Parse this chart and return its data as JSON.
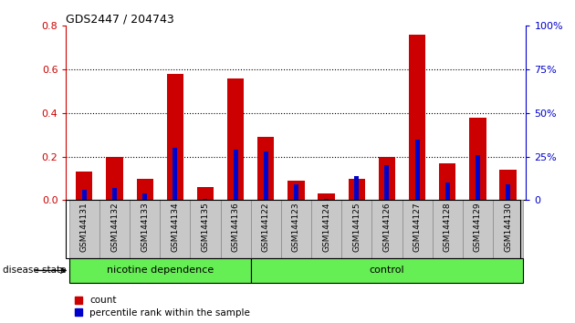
{
  "title": "GDS2447 / 204743",
  "samples": [
    "GSM144131",
    "GSM144132",
    "GSM144133",
    "GSM144134",
    "GSM144135",
    "GSM144136",
    "GSM144122",
    "GSM144123",
    "GSM144124",
    "GSM144125",
    "GSM144126",
    "GSM144127",
    "GSM144128",
    "GSM144129",
    "GSM144130"
  ],
  "count_values": [
    0.13,
    0.2,
    0.1,
    0.58,
    0.06,
    0.56,
    0.29,
    0.09,
    0.03,
    0.1,
    0.2,
    0.76,
    0.17,
    0.38,
    0.14
  ],
  "percentile_values": [
    0.06,
    0.07,
    0.04,
    0.3,
    0.01,
    0.29,
    0.28,
    0.09,
    0.01,
    0.14,
    0.2,
    0.35,
    0.1,
    0.26,
    0.09
  ],
  "nicotine_indices": [
    0,
    1,
    2,
    3,
    4,
    5
  ],
  "control_indices": [
    6,
    7,
    8,
    9,
    10,
    11,
    12,
    13,
    14
  ],
  "group_labels": [
    "nicotine dependence",
    "control"
  ],
  "count_color": "#cc0000",
  "percentile_color": "#0000cc",
  "bar_width": 0.55,
  "pct_bar_width": 0.15,
  "ylim_left": [
    0,
    0.8
  ],
  "ylim_right": [
    0,
    100
  ],
  "yticks_left": [
    0,
    0.2,
    0.4,
    0.6,
    0.8
  ],
  "yticks_right": [
    0,
    25,
    50,
    75,
    100
  ],
  "xlabel_bg": "#c8c8c8",
  "group_bg": "#66ee55",
  "disease_state_label": "disease state",
  "legend_labels": [
    "count",
    "percentile rank within the sample"
  ]
}
